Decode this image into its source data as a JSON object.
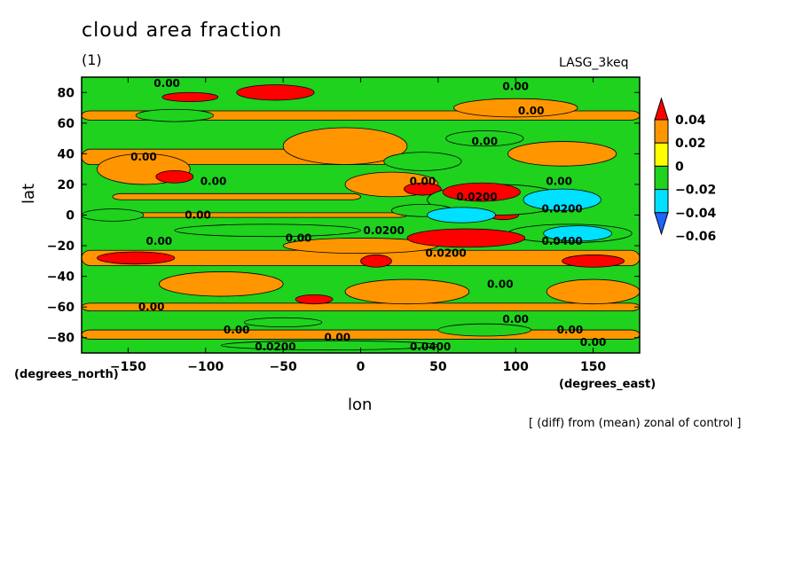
{
  "chart_data": {
    "type": "heatmap",
    "title": "cloud area fraction",
    "subtitle": "(1)",
    "model_label": "LASG_3keq",
    "xlabel": "lon",
    "ylabel": "lat",
    "x_units": "(degrees_east)",
    "y_units": "(degrees_north)",
    "footnote": "[ (diff) from (mean) zonal of control ]",
    "xlim": [
      -180,
      180
    ],
    "ylim": [
      -90,
      90
    ],
    "x_ticks": [
      -150,
      -100,
      -50,
      0,
      50,
      100,
      150
    ],
    "y_ticks": [
      -80,
      -60,
      -40,
      -20,
      0,
      20,
      40,
      60,
      80
    ],
    "x_tick_labels": [
      "−150",
      "−100",
      "−50",
      "0",
      "50",
      "100",
      "150"
    ],
    "y_tick_labels": [
      "−80",
      "−60",
      "−40",
      "−20",
      "0",
      "20",
      "40",
      "60",
      "80"
    ],
    "colorbar": {
      "levels": [
        -0.06,
        -0.04,
        -0.02,
        0,
        0.02,
        0.04
      ],
      "labels": [
        "−0.06",
        "−0.04",
        "−0.02",
        "0",
        "0.02",
        "0.04"
      ],
      "colors": [
        "#1e64ff",
        "#00e0ff",
        "#1ed21e",
        "#ffff00",
        "#ff9600",
        "#ff0000"
      ]
    },
    "background_color": "#1ed21e",
    "features": [
      {
        "kind": "band",
        "lat": 65,
        "lon0": -180,
        "lon1": 180,
        "h": 6,
        "value": 0.01
      },
      {
        "kind": "band",
        "lat": 38,
        "lon0": -180,
        "lon1": 20,
        "h": 10,
        "value": 0.01
      },
      {
        "kind": "band",
        "lat": -28,
        "lon0": -180,
        "lon1": 180,
        "h": 10,
        "value": 0.01
      },
      {
        "kind": "band",
        "lat": -60,
        "lon0": -180,
        "lon1": 180,
        "h": 5,
        "value": 0.01
      },
      {
        "kind": "band",
        "lat": -78,
        "lon0": -180,
        "lon1": 180,
        "h": 6,
        "value": 0.01
      },
      {
        "kind": "band",
        "lat": 12,
        "lon0": -160,
        "lon1": 0,
        "h": 4,
        "value": 0.01
      },
      {
        "kind": "band",
        "lat": 0,
        "lon0": -180,
        "lon1": 30,
        "h": 3,
        "value": 0.01
      },
      {
        "kind": "blob",
        "lon": -10,
        "lat": 45,
        "rx": 40,
        "ry": 12,
        "value": 0.01
      },
      {
        "kind": "blob",
        "lon": 20,
        "lat": 20,
        "rx": 30,
        "ry": 8,
        "value": 0.01
      },
      {
        "kind": "blob",
        "lon": 130,
        "lat": 40,
        "rx": 35,
        "ry": 8,
        "value": 0.01
      },
      {
        "kind": "blob",
        "lon": 100,
        "lat": 70,
        "rx": 40,
        "ry": 6,
        "value": 0.01
      },
      {
        "kind": "blob",
        "lon": 30,
        "lat": -50,
        "rx": 40,
        "ry": 8,
        "value": 0.01
      },
      {
        "kind": "blob",
        "lon": -90,
        "lat": -45,
        "rx": 40,
        "ry": 8,
        "value": 0.01
      },
      {
        "kind": "blob",
        "lon": 150,
        "lat": -50,
        "rx": 30,
        "ry": 8,
        "value": 0.01
      },
      {
        "kind": "blob",
        "lon": -140,
        "lat": 30,
        "rx": 30,
        "ry": 10,
        "value": 0.01
      },
      {
        "kind": "blob",
        "lon": 0,
        "lat": -20,
        "rx": 50,
        "ry": 5,
        "value": 0.01
      },
      {
        "kind": "blob",
        "lon": -55,
        "lat": 80,
        "rx": 25,
        "ry": 5,
        "value": 0.03
      },
      {
        "kind": "blob",
        "lon": -145,
        "lat": -28,
        "rx": 25,
        "ry": 4,
        "value": 0.03
      },
      {
        "kind": "blob",
        "lon": 10,
        "lat": -30,
        "rx": 10,
        "ry": 4,
        "value": 0.03
      },
      {
        "kind": "blob",
        "lon": 150,
        "lat": -30,
        "rx": 20,
        "ry": 4,
        "value": 0.03
      },
      {
        "kind": "blob",
        "lon": 40,
        "lat": 17,
        "rx": 12,
        "ry": 4,
        "value": 0.03
      },
      {
        "kind": "blob",
        "lon": 92,
        "lat": 0,
        "rx": 10,
        "ry": 3,
        "value": 0.03
      },
      {
        "kind": "blob",
        "lon": -110,
        "lat": 77,
        "rx": 18,
        "ry": 3,
        "value": 0.03
      },
      {
        "kind": "blob",
        "lon": -120,
        "lat": 25,
        "rx": 12,
        "ry": 4,
        "value": 0.03
      },
      {
        "kind": "blob",
        "lon": -30,
        "lat": -55,
        "rx": 12,
        "ry": 3,
        "value": 0.03
      },
      {
        "kind": "blob",
        "lon": 88,
        "lat": 10,
        "rx": 45,
        "ry": 10,
        "value": -0.03
      },
      {
        "kind": "blob",
        "lon": 40,
        "lat": 35,
        "rx": 25,
        "ry": 6,
        "value": -0.03
      },
      {
        "kind": "blob",
        "lon": -120,
        "lat": 65,
        "rx": 25,
        "ry": 4,
        "value": -0.03
      },
      {
        "kind": "blob",
        "lon": 80,
        "lat": 50,
        "rx": 25,
        "ry": 5,
        "value": -0.03
      },
      {
        "kind": "blob",
        "lon": -60,
        "lat": -10,
        "rx": 60,
        "ry": 4,
        "value": -0.03
      },
      {
        "kind": "blob",
        "lon": 80,
        "lat": -75,
        "rx": 30,
        "ry": 4,
        "value": -0.03
      },
      {
        "kind": "blob",
        "lon": -160,
        "lat": 0,
        "rx": 20,
        "ry": 4,
        "value": -0.03
      },
      {
        "kind": "blob",
        "lon": 40,
        "lat": 3,
        "rx": 20,
        "ry": 4,
        "value": -0.03
      },
      {
        "kind": "blob",
        "lon": 135,
        "lat": -12,
        "rx": 40,
        "ry": 6,
        "value": -0.03
      },
      {
        "kind": "blob",
        "lon": -50,
        "lat": -70,
        "rx": 25,
        "ry": 3,
        "value": -0.03
      },
      {
        "kind": "blob",
        "lon": -20,
        "lat": -85,
        "rx": 70,
        "ry": 3,
        "value": -0.03
      },
      {
        "kind": "blob",
        "lon": 130,
        "lat": 10,
        "rx": 25,
        "ry": 7,
        "value": -0.05
      },
      {
        "kind": "blob",
        "lon": 65,
        "lat": 0,
        "rx": 22,
        "ry": 5,
        "value": -0.05
      },
      {
        "kind": "blob",
        "lon": 140,
        "lat": -12,
        "rx": 22,
        "ry": 5,
        "value": -0.05
      },
      {
        "kind": "blob",
        "lon": 78,
        "lat": 15,
        "rx": 25,
        "ry": 6,
        "value": 0.045
      },
      {
        "kind": "blob",
        "lon": 68,
        "lat": -15,
        "rx": 38,
        "ry": 6,
        "value": 0.045
      }
    ],
    "contour_labels": [
      {
        "lon": -125,
        "lat": 86,
        "text": "0.00"
      },
      {
        "lon": 100,
        "lat": 84,
        "text": "0.00"
      },
      {
        "lon": 110,
        "lat": 68,
        "text": "0.00"
      },
      {
        "lon": 80,
        "lat": 48,
        "text": "0.00"
      },
      {
        "lon": -140,
        "lat": 38,
        "text": "0.00"
      },
      {
        "lon": -95,
        "lat": 22,
        "text": "0.00"
      },
      {
        "lon": 40,
        "lat": 22,
        "text": "0.00"
      },
      {
        "lon": -105,
        "lat": 0,
        "text": "0.00"
      },
      {
        "lon": 128,
        "lat": 22,
        "text": "0.00"
      },
      {
        "lon": 75,
        "lat": 12,
        "text": "0.0200"
      },
      {
        "lon": 130,
        "lat": 4,
        "text": "0.0200"
      },
      {
        "lon": 15,
        "lat": -10,
        "text": "0.0200"
      },
      {
        "lon": 130,
        "lat": -17,
        "text": "0.0400"
      },
      {
        "lon": -40,
        "lat": -15,
        "text": "0.00"
      },
      {
        "lon": -130,
        "lat": -17,
        "text": "0.00"
      },
      {
        "lon": 55,
        "lat": -25,
        "text": "0.0200"
      },
      {
        "lon": 90,
        "lat": -45,
        "text": "0.00"
      },
      {
        "lon": -135,
        "lat": -60,
        "text": "0.00"
      },
      {
        "lon": 100,
        "lat": -68,
        "text": "0.00"
      },
      {
        "lon": -80,
        "lat": -75,
        "text": "0.00"
      },
      {
        "lon": 135,
        "lat": -75,
        "text": "0.00"
      },
      {
        "lon": -15,
        "lat": -80,
        "text": "0.00"
      },
      {
        "lon": 150,
        "lat": -83,
        "text": "0.00"
      },
      {
        "lon": 45,
        "lat": -86,
        "text": "0.0400"
      },
      {
        "lon": -55,
        "lat": -86,
        "text": "0.0200"
      }
    ]
  }
}
